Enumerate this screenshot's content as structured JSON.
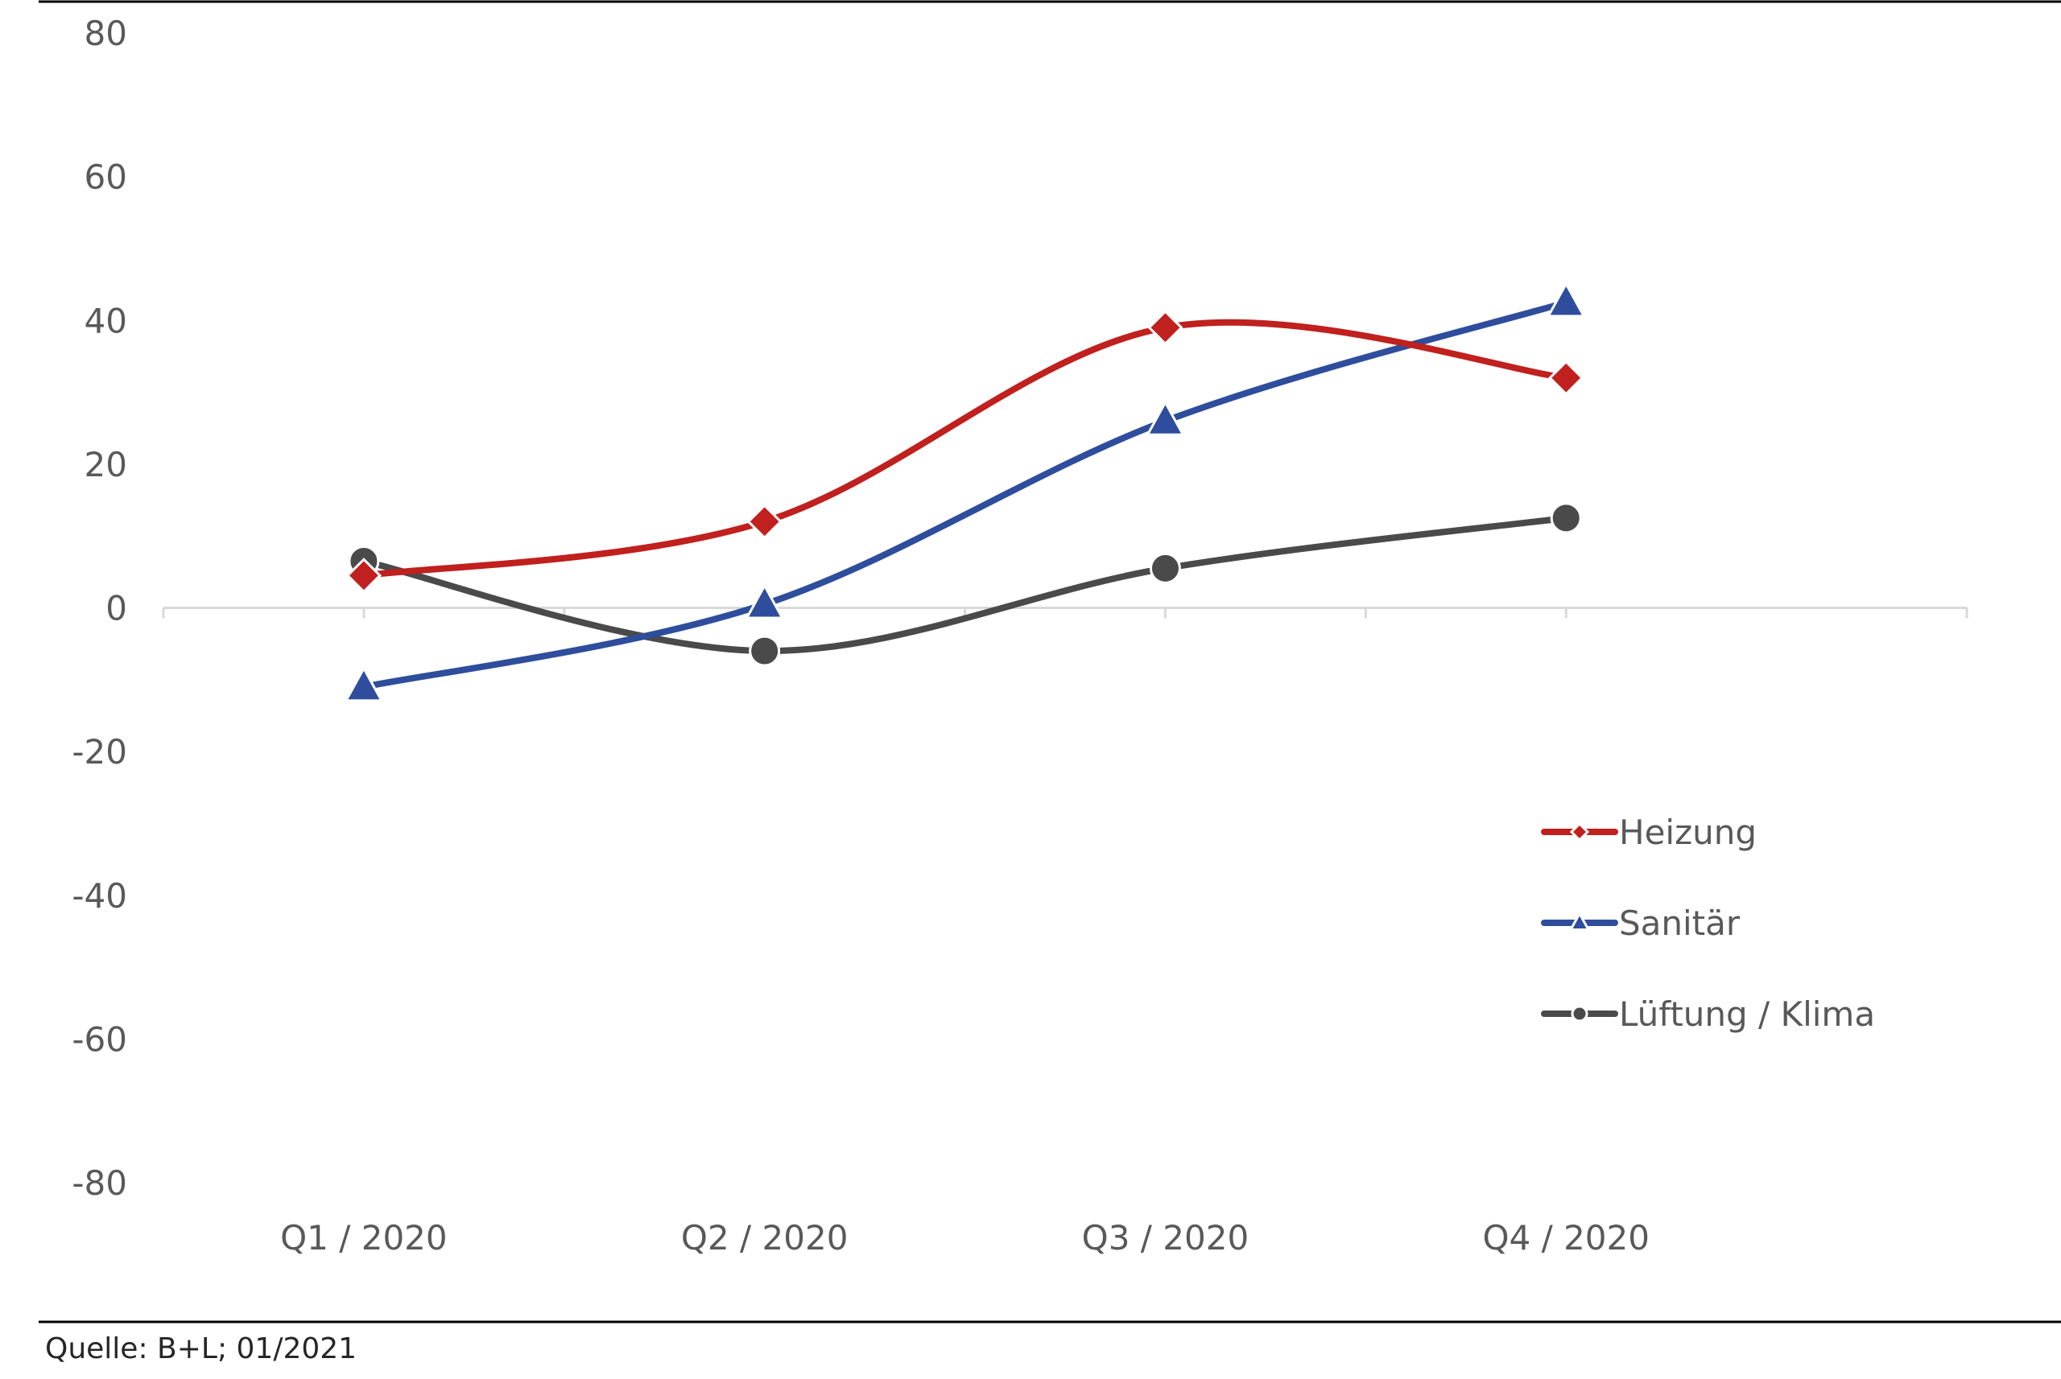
{
  "chart_data": {
    "type": "line",
    "categories": [
      "Q1 / 2020",
      "Q2 / 2020",
      "Q3 / 2020",
      "Q4 / 2020"
    ],
    "series": [
      {
        "name": "Heizung",
        "values": [
          4.5,
          12,
          39,
          32
        ],
        "color": "#c0201e",
        "marker": "diamond"
      },
      {
        "name": "Sanitär",
        "values": [
          -11,
          0.5,
          26,
          42.5
        ],
        "color": "#2e4d9c",
        "marker": "triangle"
      },
      {
        "name": "Lüftung / Klima",
        "values": [
          6.5,
          -6,
          5.5,
          12.5
        ],
        "color": "#4a4a4a",
        "marker": "circle"
      }
    ],
    "ylim": [
      -80,
      80
    ],
    "yticks": [
      80,
      60,
      40,
      20,
      0,
      -20,
      -40,
      -60,
      -80
    ],
    "grid": false,
    "legend_position": "bottom-right",
    "smooth": true
  },
  "source": "Quelle: B+L; 01/2021"
}
